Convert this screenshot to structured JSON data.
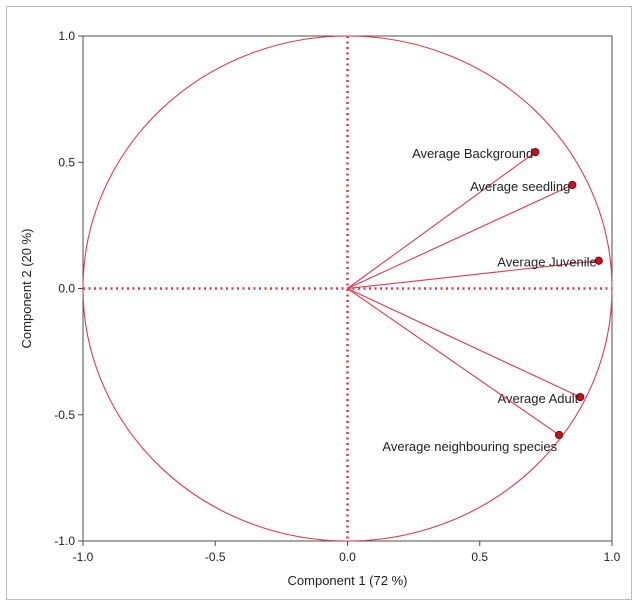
{
  "chart_data": {
    "type": "scatter",
    "title": "",
    "xlabel": "Component 1  (72 %)",
    "ylabel": "Component 2  (20 %)",
    "xlim": [
      -1.0,
      1.0
    ],
    "ylim": [
      -1.0,
      1.0
    ],
    "x_ticks": [
      "-1.0",
      "-0.5",
      "0.0",
      "0.5",
      "1.0"
    ],
    "y_ticks": [
      "1.0",
      "0.5",
      "0.0",
      "-0.5",
      "-1.0"
    ],
    "grid": false,
    "unit_circle": true,
    "points": [
      {
        "label": "Average Background",
        "x": 0.71,
        "y": 0.54
      },
      {
        "label": "Average seedling",
        "x": 0.85,
        "y": 0.41
      },
      {
        "label": "Average Juvenile",
        "x": 0.95,
        "y": 0.11
      },
      {
        "label": "Average Adult",
        "x": 0.88,
        "y": -0.43
      },
      {
        "label": "Average neighbouring species",
        "x": 0.8,
        "y": -0.58
      }
    ],
    "colors": {
      "lines": "#e0394f",
      "points": "#cc1020",
      "point_edge": "#7a0010",
      "frame": "#4d4d4d"
    }
  }
}
